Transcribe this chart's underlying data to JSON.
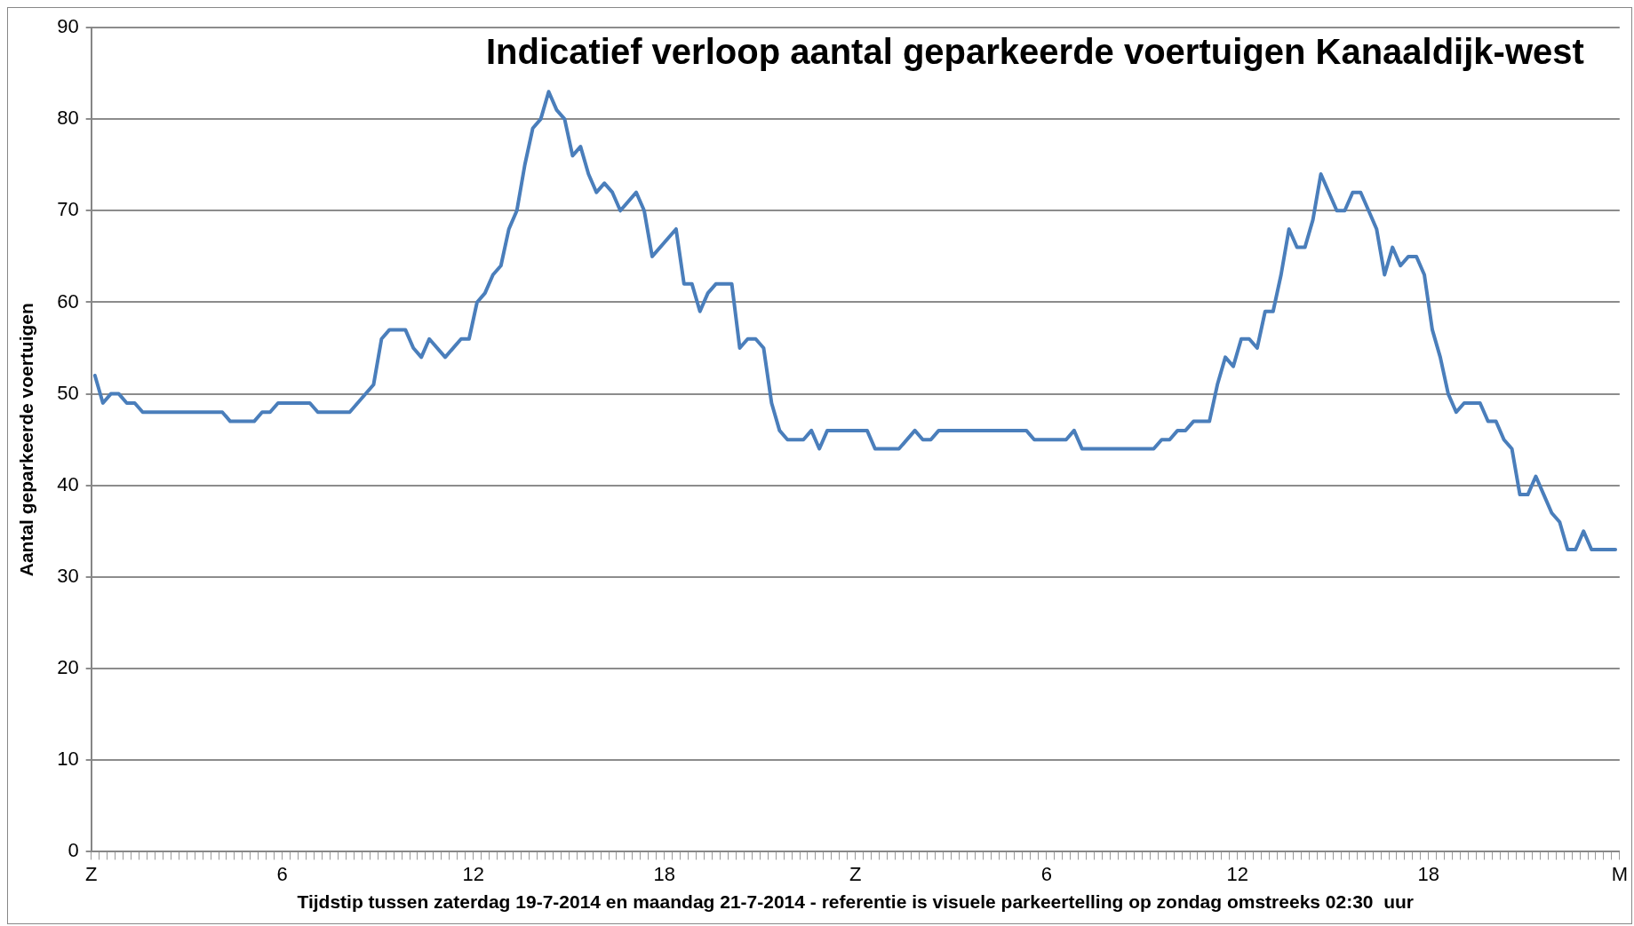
{
  "chart_data": {
    "type": "line",
    "title": "Indicatief verloop aantal geparkeerde voertuigen Kanaaldijk-west",
    "xlabel": "Tijdstip tussen zaterdag 19-7-2014 en maandag 21-7-2014 - referentie is visuele parkeertelling op zondag omstreeks 02:30  uur",
    "ylabel": "Aantal geparkeerde voertuigen",
    "color": "#4a7ebb",
    "x": [
      "2014-07-19T00:07",
      "2014-07-19T00:22",
      "2014-07-19T00:37",
      "2014-07-19T00:52",
      "2014-07-19T01:07",
      "2014-07-19T01:22",
      "2014-07-19T01:37",
      "2014-07-19T04:07",
      "2014-07-19T04:22",
      "2014-07-19T05:07",
      "2014-07-19T05:22",
      "2014-07-19T05:37",
      "2014-07-19T05:52",
      "2014-07-19T06:52",
      "2014-07-19T07:07",
      "2014-07-19T08:07",
      "2014-07-19T08:52",
      "2014-07-19T09:07",
      "2014-07-19T09:22",
      "2014-07-19T09:52",
      "2014-07-19T10:07",
      "2014-07-19T10:22",
      "2014-07-19T10:37",
      "2014-07-19T11:07",
      "2014-07-19T11:37",
      "2014-07-19T11:52",
      "2014-07-19T12:07",
      "2014-07-19T12:22",
      "2014-07-19T12:37",
      "2014-07-19T12:52",
      "2014-07-19T13:07",
      "2014-07-19T13:22",
      "2014-07-19T13:37",
      "2014-07-19T13:52",
      "2014-07-19T14:07",
      "2014-07-19T14:22",
      "2014-07-19T14:37",
      "2014-07-19T14:52",
      "2014-07-19T15:07",
      "2014-07-19T15:22",
      "2014-07-19T15:37",
      "2014-07-19T15:52",
      "2014-07-19T16:07",
      "2014-07-19T16:22",
      "2014-07-19T16:37",
      "2014-07-19T17:07",
      "2014-07-19T17:22",
      "2014-07-19T17:37",
      "2014-07-19T18:22",
      "2014-07-19T18:37",
      "2014-07-19T18:52",
      "2014-07-19T19:07",
      "2014-07-19T19:22",
      "2014-07-19T19:37",
      "2014-07-19T20:07",
      "2014-07-19T20:22",
      "2014-07-19T20:37",
      "2014-07-19T20:52",
      "2014-07-19T21:07",
      "2014-07-19T21:22",
      "2014-07-19T21:37",
      "2014-07-19T21:52",
      "2014-07-19T22:22",
      "2014-07-19T22:37",
      "2014-07-19T22:52",
      "2014-07-19T23:07",
      "2014-07-20T00:22",
      "2014-07-20T00:37",
      "2014-07-20T01:22",
      "2014-07-20T01:52",
      "2014-07-20T02:07",
      "2014-07-20T02:22",
      "2014-07-20T02:37",
      "2014-07-20T05:22",
      "2014-07-20T05:37",
      "2014-07-20T06:37",
      "2014-07-20T06:52",
      "2014-07-20T07:07",
      "2014-07-20T09:22",
      "2014-07-20T09:37",
      "2014-07-20T09:52",
      "2014-07-20T10:07",
      "2014-07-20T10:22",
      "2014-07-20T10:37",
      "2014-07-20T11:07",
      "2014-07-20T11:22",
      "2014-07-20T11:37",
      "2014-07-20T11:52",
      "2014-07-20T12:07",
      "2014-07-20T12:22",
      "2014-07-20T12:37",
      "2014-07-20T12:52",
      "2014-07-20T13:07",
      "2014-07-20T13:22",
      "2014-07-20T13:37",
      "2014-07-20T13:52",
      "2014-07-20T14:07",
      "2014-07-20T14:22",
      "2014-07-20T14:37",
      "2014-07-20T15:07",
      "2014-07-20T15:22",
      "2014-07-20T15:37",
      "2014-07-20T15:52",
      "2014-07-20T16:07",
      "2014-07-20T16:22",
      "2014-07-20T16:37",
      "2014-07-20T16:52",
      "2014-07-20T17:07",
      "2014-07-20T17:22",
      "2014-07-20T17:37",
      "2014-07-20T17:52",
      "2014-07-20T18:07",
      "2014-07-20T18:22",
      "2014-07-20T18:37",
      "2014-07-20T18:52",
      "2014-07-20T19:07",
      "2014-07-20T19:37",
      "2014-07-20T19:52",
      "2014-07-20T20:07",
      "2014-07-20T20:22",
      "2014-07-20T20:37",
      "2014-07-20T20:52",
      "2014-07-20T21:07",
      "2014-07-20T21:22",
      "2014-07-20T21:37",
      "2014-07-20T21:52",
      "2014-07-20T22:07",
      "2014-07-20T22:22",
      "2014-07-20T22:37",
      "2014-07-20T22:52",
      "2014-07-20T23:07",
      "2014-07-20T23:52"
    ],
    "values": [
      52,
      49,
      50,
      50,
      49,
      49,
      48,
      48,
      47,
      47,
      48,
      48,
      49,
      49,
      48,
      48,
      51,
      56,
      57,
      57,
      55,
      54,
      56,
      54,
      56,
      56,
      60,
      61,
      63,
      64,
      68,
      70,
      75,
      79,
      80,
      83,
      81,
      80,
      76,
      77,
      74,
      72,
      73,
      72,
      70,
      72,
      70,
      65,
      68,
      62,
      62,
      59,
      61,
      62,
      62,
      55,
      56,
      56,
      55,
      49,
      46,
      45,
      45,
      46,
      44,
      46,
      46,
      44,
      44,
      46,
      45,
      45,
      46,
      46,
      45,
      45,
      46,
      44,
      44,
      45,
      45,
      46,
      46,
      47,
      47,
      51,
      54,
      53,
      56,
      56,
      55,
      59,
      59,
      63,
      68,
      66,
      66,
      69,
      74,
      70,
      70,
      72,
      72,
      70,
      68,
      63,
      66,
      64,
      65,
      65,
      63,
      57,
      54,
      50,
      48,
      49,
      49,
      47,
      47,
      45,
      44,
      39,
      39,
      41,
      39,
      37,
      36,
      33,
      33,
      35,
      33,
      33
    ],
    "xlim": [
      "2014-07-19T00:00",
      "2014-07-21T00:00"
    ],
    "xticks": [
      {
        "value": "2014-07-19T00:00",
        "label": "Z"
      },
      {
        "value": "2014-07-19T00:15",
        "label": null
      },
      {
        "value": "2014-07-19T00:30",
        "label": null
      },
      {
        "value": "2014-07-19T00:45",
        "label": null
      },
      {
        "value": "2014-07-19T01:00",
        "label": null
      },
      {
        "value": "2014-07-19T01:15",
        "label": null
      },
      {
        "value": "2014-07-19T01:30",
        "label": null
      },
      {
        "value": "2014-07-19T01:45",
        "label": null
      },
      {
        "value": "2014-07-19T02:00",
        "label": null
      },
      {
        "value": "2014-07-19T02:15",
        "label": null
      },
      {
        "value": "2014-07-19T02:30",
        "label": null
      },
      {
        "value": "2014-07-19T02:45",
        "label": null
      },
      {
        "value": "2014-07-19T03:00",
        "label": null
      },
      {
        "value": "2014-07-19T03:15",
        "label": null
      },
      {
        "value": "2014-07-19T03:30",
        "label": null
      },
      {
        "value": "2014-07-19T03:45",
        "label": null
      },
      {
        "value": "2014-07-19T04:00",
        "label": null
      },
      {
        "value": "2014-07-19T04:15",
        "label": null
      },
      {
        "value": "2014-07-19T04:30",
        "label": null
      },
      {
        "value": "2014-07-19T04:45",
        "label": null
      },
      {
        "value": "2014-07-19T05:00",
        "label": null
      },
      {
        "value": "2014-07-19T05:15",
        "label": null
      },
      {
        "value": "2014-07-19T05:30",
        "label": null
      },
      {
        "value": "2014-07-19T05:45",
        "label": null
      },
      {
        "value": "2014-07-19T06:00",
        "label": "6"
      },
      {
        "value": "2014-07-19T06:15",
        "label": null
      },
      {
        "value": "2014-07-19T06:30",
        "label": null
      },
      {
        "value": "2014-07-19T06:45",
        "label": null
      },
      {
        "value": "2014-07-19T07:00",
        "label": null
      },
      {
        "value": "2014-07-19T07:15",
        "label": null
      },
      {
        "value": "2014-07-19T07:30",
        "label": null
      },
      {
        "value": "2014-07-19T07:45",
        "label": null
      },
      {
        "value": "2014-07-19T08:00",
        "label": null
      },
      {
        "value": "2014-07-19T08:15",
        "label": null
      },
      {
        "value": "2014-07-19T08:30",
        "label": null
      },
      {
        "value": "2014-07-19T08:45",
        "label": null
      },
      {
        "value": "2014-07-19T09:00",
        "label": null
      },
      {
        "value": "2014-07-19T09:15",
        "label": null
      },
      {
        "value": "2014-07-19T09:30",
        "label": null
      },
      {
        "value": "2014-07-19T09:45",
        "label": null
      },
      {
        "value": "2014-07-19T10:00",
        "label": null
      },
      {
        "value": "2014-07-19T10:15",
        "label": null
      },
      {
        "value": "2014-07-19T10:30",
        "label": null
      },
      {
        "value": "2014-07-19T10:45",
        "label": null
      },
      {
        "value": "2014-07-19T11:00",
        "label": null
      },
      {
        "value": "2014-07-19T11:15",
        "label": null
      },
      {
        "value": "2014-07-19T11:30",
        "label": null
      },
      {
        "value": "2014-07-19T11:45",
        "label": null
      },
      {
        "value": "2014-07-19T12:00",
        "label": "12"
      },
      {
        "value": "2014-07-19T12:15",
        "label": null
      },
      {
        "value": "2014-07-19T12:30",
        "label": null
      },
      {
        "value": "2014-07-19T12:45",
        "label": null
      },
      {
        "value": "2014-07-19T13:00",
        "label": null
      },
      {
        "value": "2014-07-19T13:15",
        "label": null
      },
      {
        "value": "2014-07-19T13:30",
        "label": null
      },
      {
        "value": "2014-07-19T13:45",
        "label": null
      },
      {
        "value": "2014-07-19T14:00",
        "label": null
      },
      {
        "value": "2014-07-19T14:15",
        "label": null
      },
      {
        "value": "2014-07-19T14:30",
        "label": null
      },
      {
        "value": "2014-07-19T14:45",
        "label": null
      },
      {
        "value": "2014-07-19T15:00",
        "label": null
      },
      {
        "value": "2014-07-19T15:15",
        "label": null
      },
      {
        "value": "2014-07-19T15:30",
        "label": null
      },
      {
        "value": "2014-07-19T15:45",
        "label": null
      },
      {
        "value": "2014-07-19T16:00",
        "label": null
      },
      {
        "value": "2014-07-19T16:15",
        "label": null
      },
      {
        "value": "2014-07-19T16:30",
        "label": null
      },
      {
        "value": "2014-07-19T16:45",
        "label": null
      },
      {
        "value": "2014-07-19T17:00",
        "label": null
      },
      {
        "value": "2014-07-19T17:15",
        "label": null
      },
      {
        "value": "2014-07-19T17:30",
        "label": null
      },
      {
        "value": "2014-07-19T17:45",
        "label": null
      },
      {
        "value": "2014-07-19T18:00",
        "label": "18"
      },
      {
        "value": "2014-07-19T18:15",
        "label": null
      },
      {
        "value": "2014-07-19T18:30",
        "label": null
      },
      {
        "value": "2014-07-19T18:45",
        "label": null
      },
      {
        "value": "2014-07-19T19:00",
        "label": null
      },
      {
        "value": "2014-07-19T19:15",
        "label": null
      },
      {
        "value": "2014-07-19T19:30",
        "label": null
      },
      {
        "value": "2014-07-19T19:45",
        "label": null
      },
      {
        "value": "2014-07-19T20:00",
        "label": null
      },
      {
        "value": "2014-07-19T20:15",
        "label": null
      },
      {
        "value": "2014-07-19T20:30",
        "label": null
      },
      {
        "value": "2014-07-19T20:45",
        "label": null
      },
      {
        "value": "2014-07-19T21:00",
        "label": null
      },
      {
        "value": "2014-07-19T21:15",
        "label": null
      },
      {
        "value": "2014-07-19T21:30",
        "label": null
      },
      {
        "value": "2014-07-19T21:45",
        "label": null
      },
      {
        "value": "2014-07-19T22:00",
        "label": null
      },
      {
        "value": "2014-07-19T22:15",
        "label": null
      },
      {
        "value": "2014-07-19T22:30",
        "label": null
      },
      {
        "value": "2014-07-19T22:45",
        "label": null
      },
      {
        "value": "2014-07-19T23:00",
        "label": null
      },
      {
        "value": "2014-07-19T23:15",
        "label": null
      },
      {
        "value": "2014-07-19T23:30",
        "label": null
      },
      {
        "value": "2014-07-19T23:45",
        "label": null
      },
      {
        "value": "2014-07-20T00:00",
        "label": "Z"
      },
      {
        "value": "2014-07-20T00:15",
        "label": null
      },
      {
        "value": "2014-07-20T00:30",
        "label": null
      },
      {
        "value": "2014-07-20T00:45",
        "label": null
      },
      {
        "value": "2014-07-20T01:00",
        "label": null
      },
      {
        "value": "2014-07-20T01:15",
        "label": null
      },
      {
        "value": "2014-07-20T01:30",
        "label": null
      },
      {
        "value": "2014-07-20T01:45",
        "label": null
      },
      {
        "value": "2014-07-20T02:00",
        "label": null
      },
      {
        "value": "2014-07-20T02:15",
        "label": null
      },
      {
        "value": "2014-07-20T02:30",
        "label": null
      },
      {
        "value": "2014-07-20T02:45",
        "label": null
      },
      {
        "value": "2014-07-20T03:00",
        "label": null
      },
      {
        "value": "2014-07-20T03:15",
        "label": null
      },
      {
        "value": "2014-07-20T03:30",
        "label": null
      },
      {
        "value": "2014-07-20T03:45",
        "label": null
      },
      {
        "value": "2014-07-20T04:00",
        "label": null
      },
      {
        "value": "2014-07-20T04:15",
        "label": null
      },
      {
        "value": "2014-07-20T04:30",
        "label": null
      },
      {
        "value": "2014-07-20T04:45",
        "label": null
      },
      {
        "value": "2014-07-20T05:00",
        "label": null
      },
      {
        "value": "2014-07-20T05:15",
        "label": null
      },
      {
        "value": "2014-07-20T05:30",
        "label": null
      },
      {
        "value": "2014-07-20T05:45",
        "label": null
      },
      {
        "value": "2014-07-20T06:00",
        "label": "6"
      },
      {
        "value": "2014-07-20T06:15",
        "label": null
      },
      {
        "value": "2014-07-20T06:30",
        "label": null
      },
      {
        "value": "2014-07-20T06:45",
        "label": null
      },
      {
        "value": "2014-07-20T07:00",
        "label": null
      },
      {
        "value": "2014-07-20T07:15",
        "label": null
      },
      {
        "value": "2014-07-20T07:30",
        "label": null
      },
      {
        "value": "2014-07-20T07:45",
        "label": null
      },
      {
        "value": "2014-07-20T08:00",
        "label": null
      },
      {
        "value": "2014-07-20T08:15",
        "label": null
      },
      {
        "value": "2014-07-20T08:30",
        "label": null
      },
      {
        "value": "2014-07-20T08:45",
        "label": null
      },
      {
        "value": "2014-07-20T09:00",
        "label": null
      },
      {
        "value": "2014-07-20T09:15",
        "label": null
      },
      {
        "value": "2014-07-20T09:30",
        "label": null
      },
      {
        "value": "2014-07-20T09:45",
        "label": null
      },
      {
        "value": "2014-07-20T10:00",
        "label": null
      },
      {
        "value": "2014-07-20T10:15",
        "label": null
      },
      {
        "value": "2014-07-20T10:30",
        "label": null
      },
      {
        "value": "2014-07-20T10:45",
        "label": null
      },
      {
        "value": "2014-07-20T11:00",
        "label": null
      },
      {
        "value": "2014-07-20T11:15",
        "label": null
      },
      {
        "value": "2014-07-20T11:30",
        "label": null
      },
      {
        "value": "2014-07-20T11:45",
        "label": null
      },
      {
        "value": "2014-07-20T12:00",
        "label": "12"
      },
      {
        "value": "2014-07-20T12:15",
        "label": null
      },
      {
        "value": "2014-07-20T12:30",
        "label": null
      },
      {
        "value": "2014-07-20T12:45",
        "label": null
      },
      {
        "value": "2014-07-20T13:00",
        "label": null
      },
      {
        "value": "2014-07-20T13:15",
        "label": null
      },
      {
        "value": "2014-07-20T13:30",
        "label": null
      },
      {
        "value": "2014-07-20T13:45",
        "label": null
      },
      {
        "value": "2014-07-20T14:00",
        "label": null
      },
      {
        "value": "2014-07-20T14:15",
        "label": null
      },
      {
        "value": "2014-07-20T14:30",
        "label": null
      },
      {
        "value": "2014-07-20T14:45",
        "label": null
      },
      {
        "value": "2014-07-20T15:00",
        "label": null
      },
      {
        "value": "2014-07-20T15:15",
        "label": null
      },
      {
        "value": "2014-07-20T15:30",
        "label": null
      },
      {
        "value": "2014-07-20T15:45",
        "label": null
      },
      {
        "value": "2014-07-20T16:00",
        "label": null
      },
      {
        "value": "2014-07-20T16:15",
        "label": null
      },
      {
        "value": "2014-07-20T16:30",
        "label": null
      },
      {
        "value": "2014-07-20T16:45",
        "label": null
      },
      {
        "value": "2014-07-20T17:00",
        "label": null
      },
      {
        "value": "2014-07-20T17:15",
        "label": null
      },
      {
        "value": "2014-07-20T17:30",
        "label": null
      },
      {
        "value": "2014-07-20T17:45",
        "label": null
      },
      {
        "value": "2014-07-20T18:00",
        "label": "18"
      },
      {
        "value": "2014-07-20T18:15",
        "label": null
      },
      {
        "value": "2014-07-20T18:30",
        "label": null
      },
      {
        "value": "2014-07-20T18:45",
        "label": null
      },
      {
        "value": "2014-07-20T19:00",
        "label": null
      },
      {
        "value": "2014-07-20T19:15",
        "label": null
      },
      {
        "value": "2014-07-20T19:30",
        "label": null
      },
      {
        "value": "2014-07-20T19:45",
        "label": null
      },
      {
        "value": "2014-07-20T20:00",
        "label": null
      },
      {
        "value": "2014-07-20T20:15",
        "label": null
      },
      {
        "value": "2014-07-20T20:30",
        "label": null
      },
      {
        "value": "2014-07-20T20:45",
        "label": null
      },
      {
        "value": "2014-07-20T21:00",
        "label": null
      },
      {
        "value": "2014-07-20T21:15",
        "label": null
      },
      {
        "value": "2014-07-20T21:30",
        "label": null
      },
      {
        "value": "2014-07-20T21:45",
        "label": null
      },
      {
        "value": "2014-07-20T22:00",
        "label": null
      },
      {
        "value": "2014-07-20T22:15",
        "label": null
      },
      {
        "value": "2014-07-20T22:30",
        "label": null
      },
      {
        "value": "2014-07-20T22:45",
        "label": null
      },
      {
        "value": "2014-07-20T23:00",
        "label": null
      },
      {
        "value": "2014-07-20T23:15",
        "label": null
      },
      {
        "value": "2014-07-20T23:30",
        "label": null
      },
      {
        "value": "2014-07-20T23:45",
        "label": null
      },
      {
        "value": "2014-07-21T00:00",
        "label": "M"
      }
    ],
    "ylim": [
      0,
      90
    ],
    "yticks": [
      0,
      10,
      20,
      30,
      40,
      50,
      60,
      70,
      80,
      90
    ],
    "grid": "y",
    "legend": false,
    "marker": "none",
    "line_style": "solid"
  }
}
